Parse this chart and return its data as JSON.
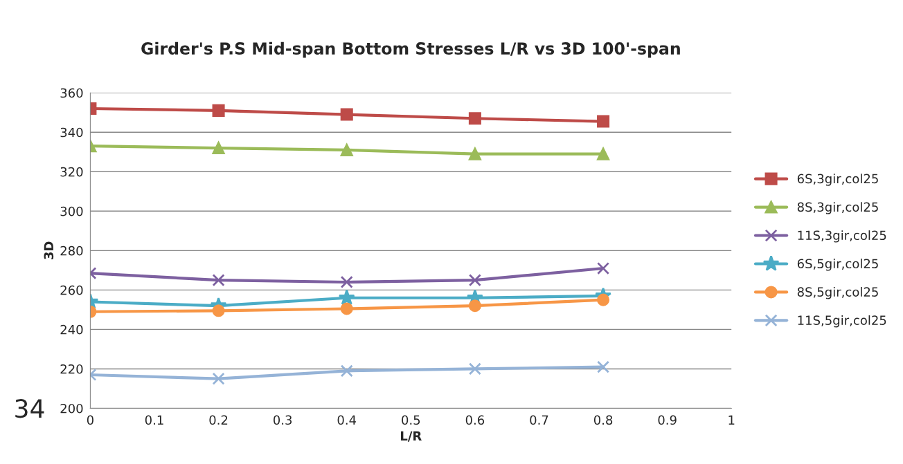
{
  "chart_data": {
    "type": "line",
    "title": "Girder's P.S Mid-span Bottom Stresses L/R vs 3D 100'-span",
    "xlabel": "L/R",
    "ylabel": "3D",
    "x": [
      0,
      0.2,
      0.4,
      0.6,
      0.8
    ],
    "series": [
      {
        "name": "6S,3gir,col25",
        "color": "#be4b48",
        "marker": "square",
        "values": [
          352,
          351,
          349,
          347,
          345.5
        ]
      },
      {
        "name": "8S,3gir,col25",
        "color": "#9bbb59",
        "marker": "triangle",
        "values": [
          333,
          332,
          331,
          329,
          329
        ]
      },
      {
        "name": "11S,3gir,col25",
        "color": "#7d60a0",
        "marker": "cross",
        "values": [
          268.5,
          265,
          264,
          265,
          271
        ]
      },
      {
        "name": "6S,5gir,col25",
        "color": "#4bacc6",
        "marker": "star",
        "values": [
          254,
          252,
          256,
          256,
          257
        ]
      },
      {
        "name": "8S,5gir,col25",
        "color": "#f79646",
        "marker": "circle",
        "values": [
          249,
          249.5,
          250.5,
          252,
          255
        ]
      },
      {
        "name": "11S,5gir,col25",
        "color": "#95b3d7",
        "marker": "cross",
        "values": [
          217,
          215,
          219,
          220,
          221
        ]
      }
    ],
    "xlim": [
      0,
      1
    ],
    "xticks": [
      0,
      0.1,
      0.2,
      0.3,
      0.4,
      0.5,
      0.6,
      0.7,
      0.8,
      0.9,
      1
    ],
    "ylim": [
      200,
      360
    ],
    "yticks": [
      200,
      220,
      240,
      260,
      280,
      300,
      320,
      340,
      360
    ],
    "grid": "y",
    "legend": "right",
    "line_style": "solid",
    "annotations": [
      "34"
    ]
  }
}
